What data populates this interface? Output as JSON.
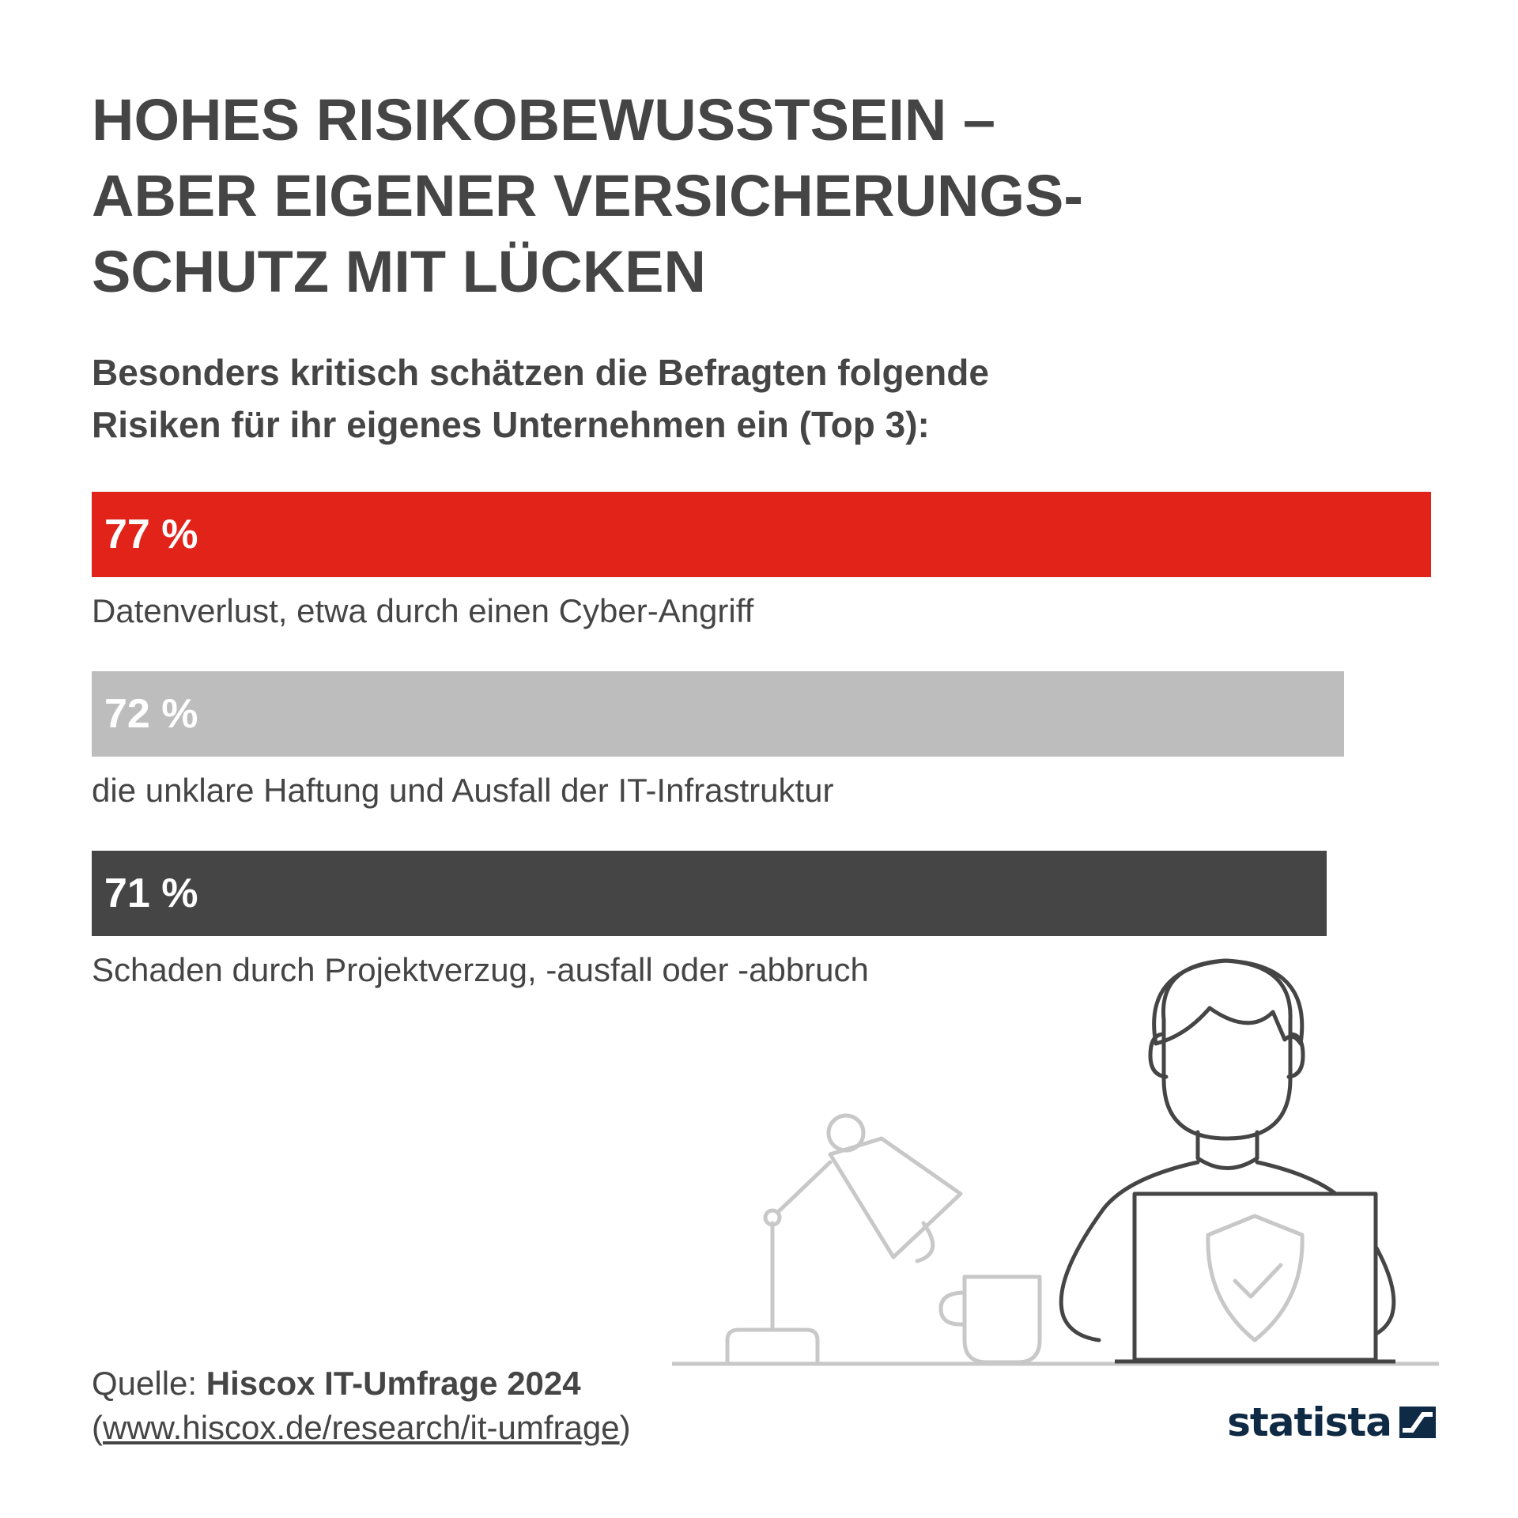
{
  "header": {
    "title": "HOHES RISIKOBEWUSSTSEIN –\nABER EIGENER VERSICHERUNGS-\nSCHUTZ MIT LÜCKEN",
    "subtitle": "Besonders kritisch schätzen die Befragten folgende\nRisiken für ihr eigenes Unternehmen ein (Top 3):"
  },
  "chart_data": {
    "type": "bar",
    "orientation": "horizontal",
    "title": "HOHES RISIKOBEWUSSTSEIN – ABER EIGENER VERSICHERUNGS-SCHUTZ MIT LÜCKEN",
    "subtitle": "Besonders kritisch schätzen die Befragten folgende Risiken für ihr eigenes Unternehmen ein (Top 3):",
    "categories": [
      "Datenverlust, etwa durch einen Cyber-Angriff",
      "die unklare Haftung und Ausfall der IT-Infrastruktur",
      "Schaden durch Projektverzug, -ausfall oder -abbruch"
    ],
    "values": [
      77,
      72,
      71
    ],
    "value_labels": [
      "77 %",
      "72 %",
      "71 %"
    ],
    "bar_colors": [
      "#e2231a",
      "#bdbdbd",
      "#454545"
    ],
    "value_label_colors": [
      "#ffffff",
      "#ffffff",
      "#ffffff"
    ],
    "unit": "%",
    "grid": false,
    "legend": "none"
  },
  "footer": {
    "source_prefix": "Quelle: ",
    "source_name": "Hiscox IT-Umfrage 2024",
    "source_url_open": "(",
    "source_url": "www.hiscox.de/research/it-umfrage",
    "source_url_close": ")",
    "logo_text": "statista"
  },
  "illustration": {
    "icons": [
      "person-icon",
      "laptop-icon",
      "shield-check-icon",
      "desk-lamp-icon",
      "coffee-mug-icon"
    ]
  }
}
